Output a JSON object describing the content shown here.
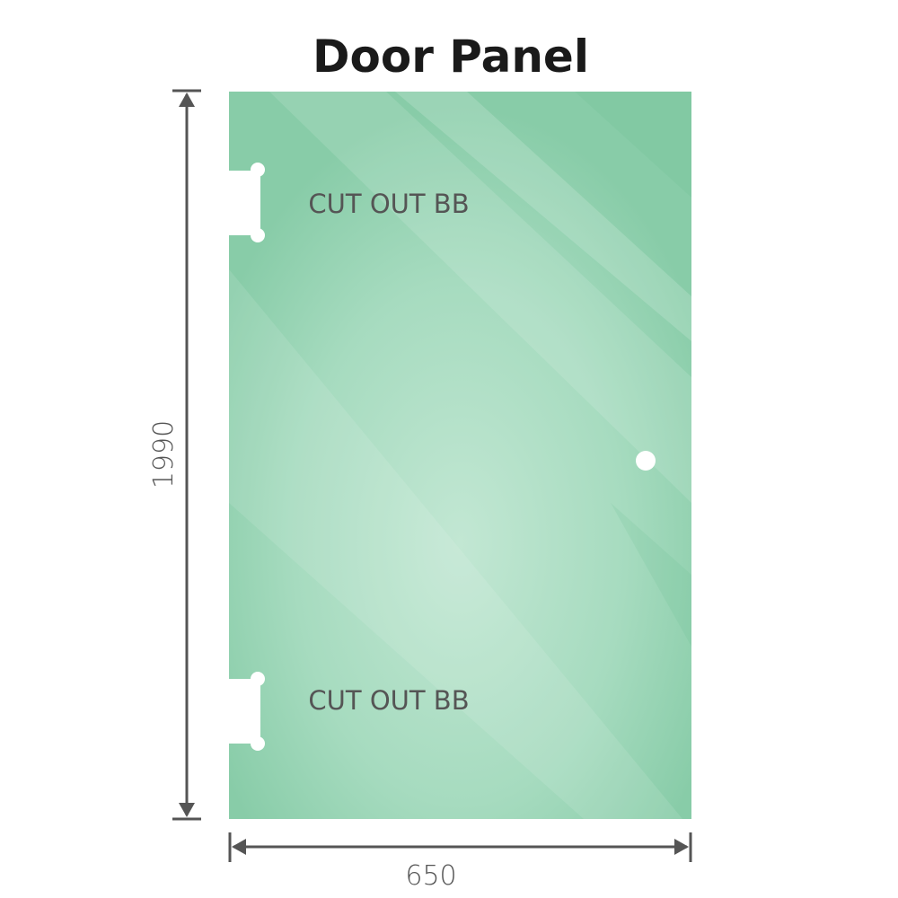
{
  "title": "Door Panel",
  "cutout_top_label": "CUT OUT BB",
  "cutout_bottom_label": "CUT OUT BB",
  "height_dimension": "1990",
  "width_dimension": "650",
  "colors": {
    "glass": "#8fd0ad",
    "glass_light": "#bfe6d1",
    "dimension_line": "#555555"
  }
}
